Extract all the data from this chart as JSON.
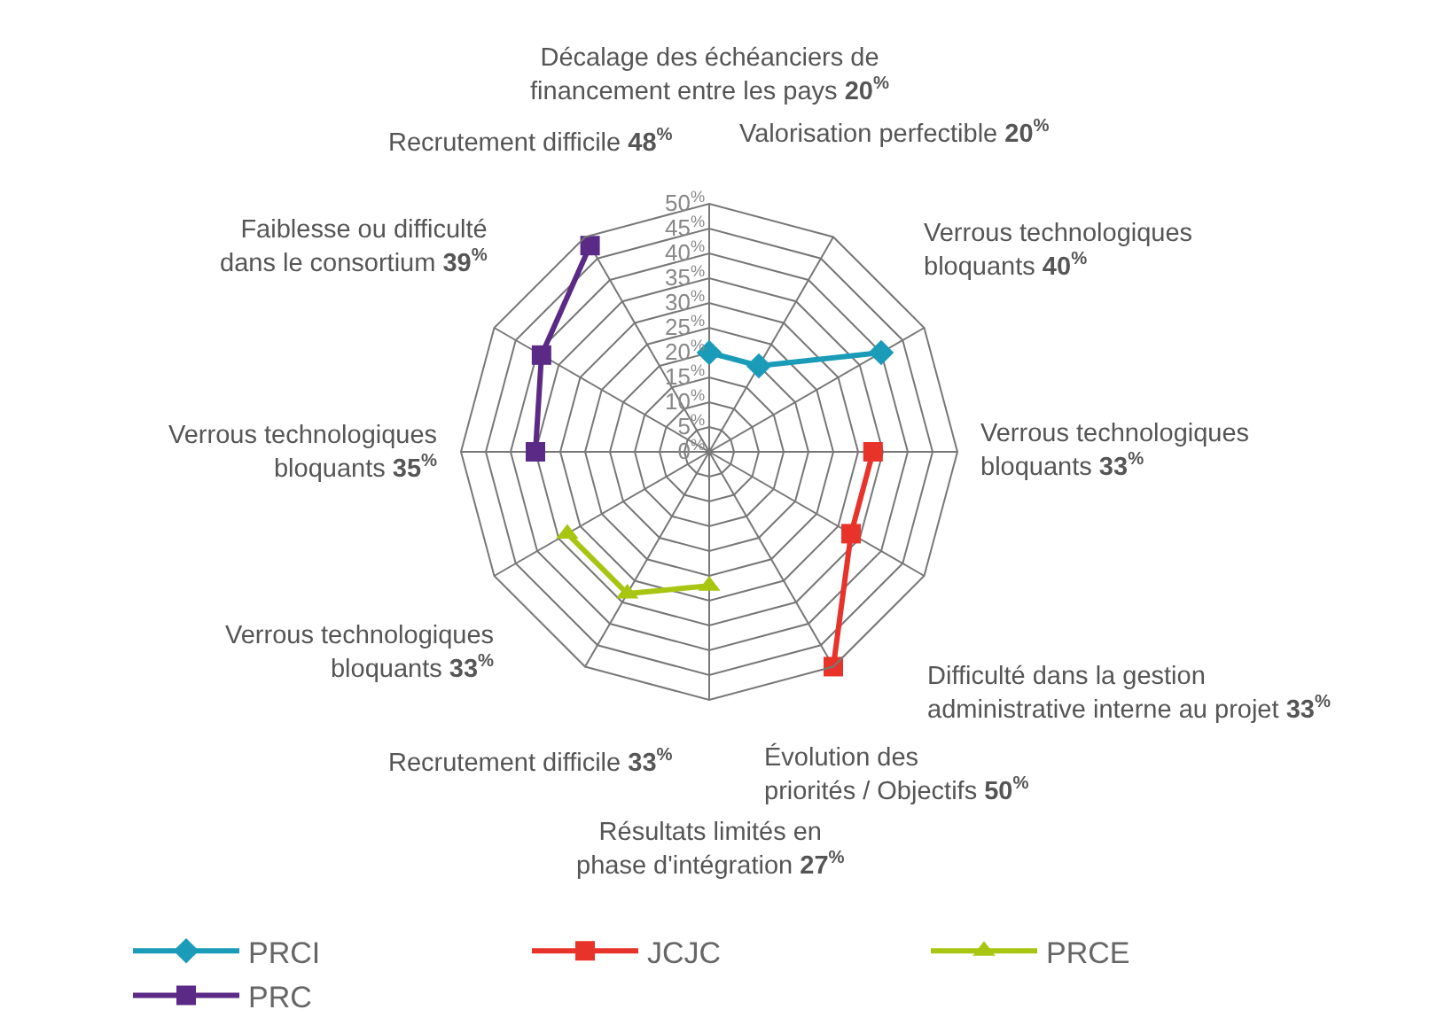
{
  "chart_data": {
    "type": "radar",
    "categories": [
      "Décalage des échéanciers de financement entre les pays",
      "Valorisation perfectible",
      "Verrous technologiques bloquants",
      "Verrous technologiques bloquants",
      "Difficulté dans la gestion administrative interne au projet",
      "Évolution des priorités / Objectifs",
      "Résultats limités en phase d'intégration",
      "Recrutement difficile",
      "Verrous technologiques bloquants",
      "Verrous technologiques bloquants",
      "Faiblesse ou difficulté dans le consortium",
      "Recrutement difficile"
    ],
    "series": [
      {
        "name": "PRCI",
        "color": "#1a9bb8",
        "marker": "diamond",
        "values": [
          20,
          20,
          40,
          null,
          null,
          null,
          null,
          null,
          null,
          null,
          null,
          null
        ]
      },
      {
        "name": "JCJC",
        "color": "#e8332b",
        "marker": "square",
        "values": [
          null,
          null,
          null,
          33,
          33,
          50,
          null,
          null,
          null,
          null,
          null,
          null
        ]
      },
      {
        "name": "PRCE",
        "color": "#a8c512",
        "marker": "triangle",
        "values": [
          null,
          null,
          null,
          null,
          null,
          null,
          27,
          33,
          33,
          null,
          null,
          null
        ]
      },
      {
        "name": "PRC",
        "color": "#5a2a86",
        "marker": "square",
        "values": [
          null,
          null,
          null,
          null,
          null,
          null,
          null,
          null,
          null,
          35,
          39,
          48
        ]
      }
    ],
    "value_labels": [
      "20$^{%}$",
      "20$^{%}$",
      "40$^{%}$",
      "33$^{%}$",
      "33$^{%}$",
      "50$^{%}$",
      "27$^{%}$",
      "33$^{%}$",
      "33$^{%}$",
      "35$^{%}$",
      "39$^{%}$",
      "48$^{%}$"
    ],
    "ylim": [
      0,
      50
    ],
    "yticks": [
      {
        "value": 0,
        "label": "0$^{%}$"
      },
      {
        "value": 5,
        "label": "5$^{%}$"
      },
      {
        "value": 10,
        "label": "10$^{%}$"
      },
      {
        "value": 15,
        "label": "15$^{%}$"
      },
      {
        "value": 20,
        "label": "20$^{%}$"
      },
      {
        "value": 25,
        "label": "25$^{%}$"
      },
      {
        "value": 30,
        "label": "30$^{%}$"
      },
      {
        "value": 35,
        "label": "35$^{%}$"
      },
      {
        "value": 40,
        "label": "40$^{%}$"
      },
      {
        "value": 45,
        "label": "45$^{%}$"
      },
      {
        "value": 50,
        "label": "50$^{%}$"
      }
    ],
    "grid": true,
    "legend": "bottom",
    "line_style": "solid"
  }
}
